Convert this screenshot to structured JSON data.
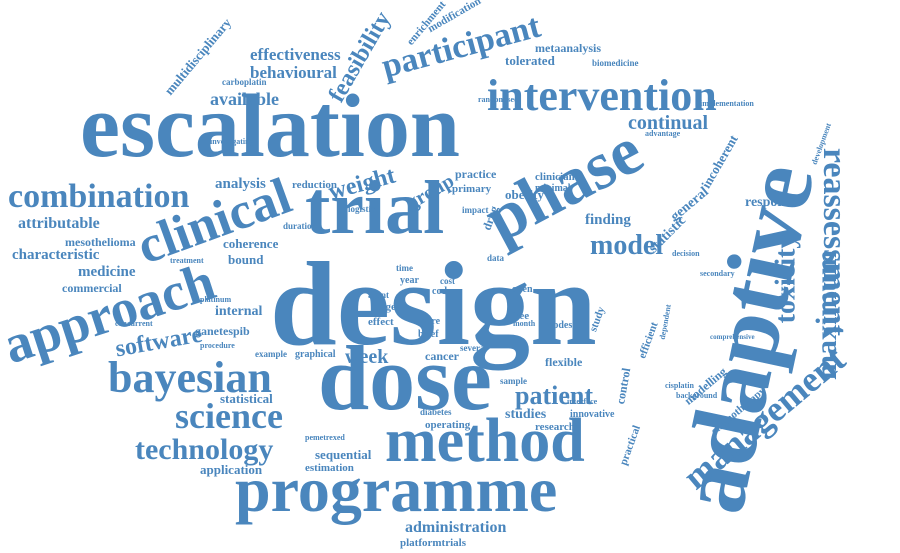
{
  "color": "#4a86bd",
  "words": [
    "design",
    "adaptive",
    "escalation",
    "dose",
    "trial",
    "phase",
    "programme",
    "method",
    "approach",
    "clinical",
    "bayesian",
    "intervention",
    "participant",
    "combination",
    "reassessment",
    "management",
    "maximum",
    "toxicity",
    "science",
    "technology",
    "patient",
    "model",
    "software",
    "feasibility",
    "effectiveness",
    "behavioural",
    "available",
    "continual",
    "weight",
    "group",
    "analysis",
    "attributable",
    "characteristic",
    "medicine",
    "commercial",
    "mesothelioma",
    "coherence",
    "bound",
    "internal",
    "ganetespib",
    "week",
    "statistical",
    "application",
    "estimation",
    "sequential",
    "administration",
    "platformtrials",
    "operating",
    "diabetes",
    "studies",
    "research",
    "innovative",
    "flexible",
    "cancer",
    "modelling",
    "chemotherapy",
    "response",
    "general",
    "statistic",
    "finding",
    "incoherent",
    "study",
    "control",
    "practical",
    "efficient",
    "metaanalysis",
    "tolerated",
    "obesity",
    "biomedicine",
    "multidisciplinary",
    "carboplatin",
    "investigating",
    "randomised",
    "implementation",
    "advantage",
    "development",
    "reduction",
    "practice",
    "primary",
    "clinician",
    "drug",
    "minimal",
    "logistic",
    "impact",
    "duration",
    "treatment",
    "platinum",
    "concurrent",
    "example",
    "graphical",
    "procedure",
    "stage",
    "effect",
    "more",
    "brief",
    "free",
    "code",
    "cost",
    "year",
    "data",
    "open",
    "modest",
    "month",
    "sample",
    "several",
    "agent",
    "time",
    "interface",
    "background",
    "cisplatin",
    "secondary",
    "decision",
    "dependent",
    "pemetrexed",
    "comprehensive",
    "modification",
    "enrichment"
  ]
}
